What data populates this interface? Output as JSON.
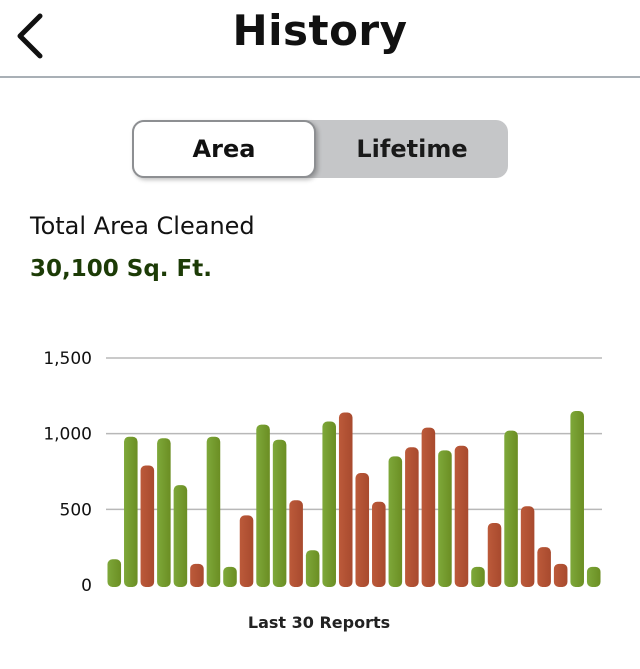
{
  "header": {
    "title": "History",
    "back_icon": "chevron-left-icon"
  },
  "segmented_control": {
    "options": [
      "Area",
      "Lifetime"
    ],
    "selected": "Area"
  },
  "summary": {
    "label": "Total Area Cleaned",
    "value": "30,100 Sq. Ft."
  },
  "colors": {
    "green": "#6b8e23",
    "red": "#a84a2e",
    "value_text": "#1c3b06",
    "grid": "#b8b8b8"
  },
  "chart_data": {
    "type": "bar",
    "xlabel": "Last 30 Reports",
    "ylabel": "",
    "ylim": [
      0,
      1500
    ],
    "yticks": [
      "0",
      "500",
      "1,000",
      "1,500"
    ],
    "ytick_values": [
      0,
      500,
      1000,
      1500
    ],
    "grid": true,
    "values": [
      170,
      980,
      790,
      970,
      660,
      140,
      980,
      120,
      460,
      1060,
      960,
      560,
      230,
      1080,
      1140,
      740,
      550,
      850,
      910,
      1040,
      890,
      920,
      120,
      410,
      1020,
      520,
      250,
      140,
      1150,
      120
    ],
    "colors": [
      "green",
      "green",
      "red",
      "green",
      "green",
      "red",
      "green",
      "green",
      "red",
      "green",
      "green",
      "red",
      "green",
      "green",
      "red",
      "red",
      "red",
      "green",
      "red",
      "red",
      "green",
      "red",
      "green",
      "red",
      "green",
      "red",
      "red",
      "red",
      "green",
      "green"
    ]
  }
}
